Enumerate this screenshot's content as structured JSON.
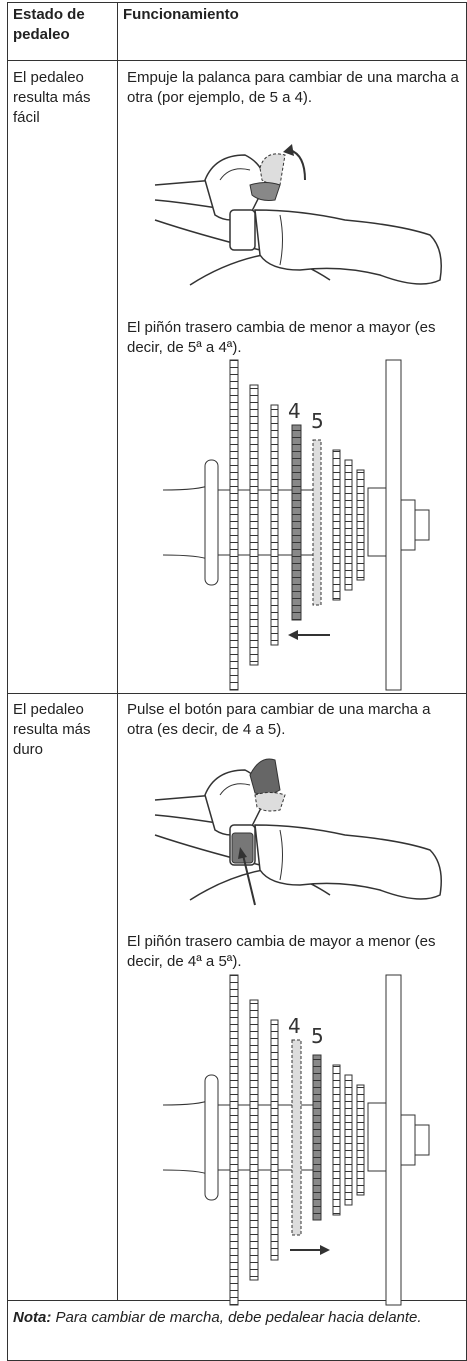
{
  "header": {
    "col1": "Estado de pedaleo",
    "col2": "Funcionamiento"
  },
  "rows": [
    {
      "state": "El pedaleo resulta más fácil",
      "action": "Empuje la palanca para cambiar de una marcha a otra (por ejemplo, de 5 a 4).",
      "sprocket_text": "El piñón trasero cambia de menor a mayor (es decir, de 5ª a 4ª).",
      "gear_labels": [
        "4",
        "5"
      ]
    },
    {
      "state": "El pedaleo resulta más duro",
      "action": "Pulse el botón para cambiar de una marcha a otra (es decir, de 4 a 5).",
      "sprocket_text": "El piñón trasero cambia de mayor a menor (es decir, de 4ª a 5ª).",
      "gear_labels": [
        "4",
        "5"
      ]
    }
  ],
  "note": {
    "label": "Nota:",
    "text": "Para cambiar de marcha, debe pedalear hacia delante."
  }
}
